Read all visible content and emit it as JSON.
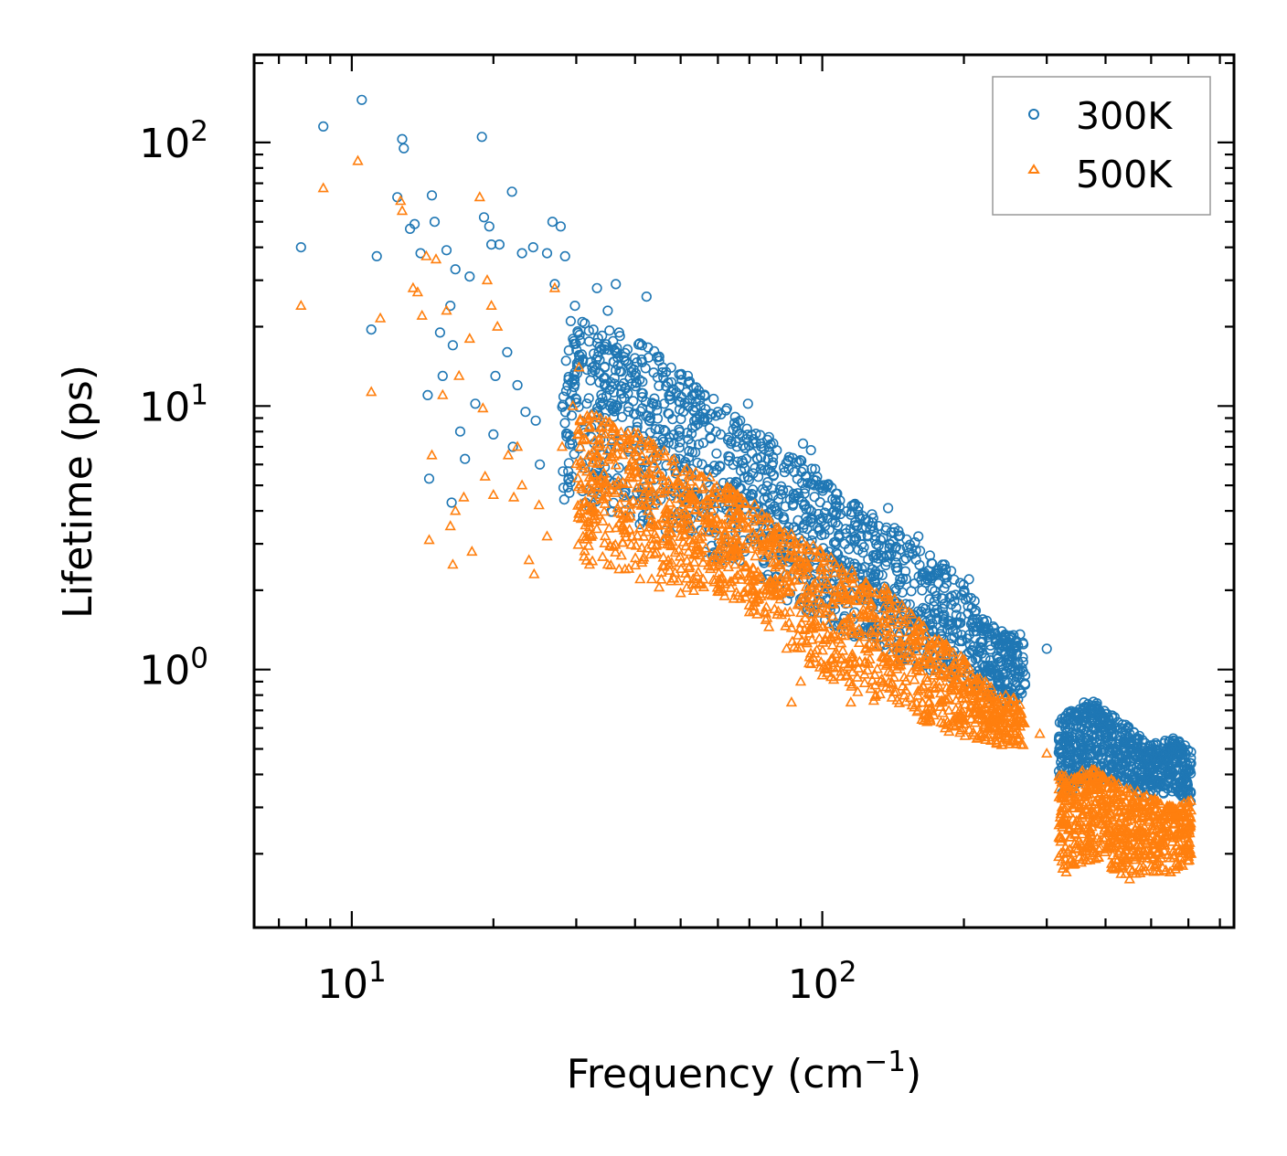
{
  "chart_data": {
    "type": "scatter",
    "xscale": "log",
    "yscale": "log",
    "xlim": [
      6.2,
      750
    ],
    "ylim": [
      0.105,
      215
    ],
    "xlabel": "Frequency (cm",
    "xlabel_sup": "−1",
    "xlabel_close": ")",
    "ylabel": "Lifetime (ps)",
    "xticks": [
      {
        "value": 10,
        "base": "10",
        "exp": "1"
      },
      {
        "value": 100,
        "base": "10",
        "exp": "2"
      }
    ],
    "yticks": [
      {
        "value": 1,
        "base": "10",
        "exp": "0"
      },
      {
        "value": 10,
        "base": "10",
        "exp": "1"
      },
      {
        "value": 100,
        "base": "10",
        "exp": "2"
      }
    ],
    "legend": {
      "position": "top-right"
    },
    "series": [
      {
        "name": "300K",
        "marker": "circle-open",
        "color": "#1f77b4",
        "sample_points": [
          [
            7.8,
            40
          ],
          [
            8.7,
            115
          ],
          [
            10.5,
            145
          ],
          [
            11.0,
            19.5
          ],
          [
            11.3,
            37
          ],
          [
            12.5,
            62
          ],
          [
            12.8,
            103
          ],
          [
            12.9,
            95
          ],
          [
            13.3,
            47
          ],
          [
            13.6,
            49
          ],
          [
            14.0,
            38
          ],
          [
            14.5,
            11
          ],
          [
            14.6,
            5.3
          ],
          [
            14.8,
            63
          ],
          [
            15.0,
            50
          ],
          [
            15.4,
            19
          ],
          [
            15.6,
            13
          ],
          [
            15.9,
            39
          ],
          [
            16.2,
            24
          ],
          [
            16.3,
            4.3
          ],
          [
            16.4,
            17
          ],
          [
            16.6,
            33
          ],
          [
            17.0,
            8.0
          ],
          [
            17.4,
            6.3
          ],
          [
            17.8,
            31
          ],
          [
            18.3,
            10.2
          ],
          [
            18.9,
            105
          ],
          [
            19.1,
            52
          ],
          [
            19.6,
            48
          ],
          [
            19.8,
            41
          ],
          [
            20.0,
            7.8
          ],
          [
            20.2,
            13
          ],
          [
            20.6,
            41
          ],
          [
            21.4,
            16
          ],
          [
            21.9,
            65
          ],
          [
            22.0,
            7.0
          ],
          [
            22.5,
            12
          ],
          [
            23.0,
            38
          ],
          [
            23.4,
            9.5
          ],
          [
            24.3,
            40
          ],
          [
            24.6,
            8.8
          ],
          [
            25.1,
            6.0
          ],
          [
            26.0,
            38
          ],
          [
            26.7,
            50
          ],
          [
            27.0,
            29
          ],
          [
            27.8,
            48
          ],
          [
            28.4,
            37
          ],
          [
            29.2,
            21
          ],
          [
            29.8,
            24
          ],
          [
            31.4,
            4.3
          ],
          [
            33.2,
            28
          ],
          [
            33.5,
            16
          ],
          [
            35.0,
            23
          ],
          [
            36.4,
            29
          ],
          [
            37.0,
            19
          ],
          [
            40.0,
            13
          ],
          [
            41.4,
            17
          ],
          [
            42.3,
            26
          ],
          [
            45.8,
            14
          ],
          [
            55.0,
            11
          ],
          [
            60.0,
            9.5
          ],
          [
            66.0,
            8.0
          ],
          [
            69.5,
            10.2
          ],
          [
            77.0,
            7.0
          ],
          [
            85.0,
            6.4
          ],
          [
            91.0,
            7.2
          ],
          [
            94.6,
            6.8
          ],
          [
            100,
            5.0
          ],
          [
            120,
            3.8
          ],
          [
            138,
            4.1
          ],
          [
            160,
            3.2
          ],
          [
            182,
            2.5
          ],
          [
            205,
            2.2
          ],
          [
            220,
            1.45
          ],
          [
            255,
            1.35
          ],
          [
            270,
            0.95
          ],
          [
            300,
            1.2
          ],
          [
            330,
            0.55
          ],
          [
            360,
            0.75
          ],
          [
            400,
            0.55
          ],
          [
            450,
            0.57
          ],
          [
            500,
            0.48
          ],
          [
            560,
            0.52
          ],
          [
            608,
            0.44
          ]
        ],
        "band": [
          {
            "x": 28,
            "lo": 4.2,
            "hi": 22
          },
          {
            "x": 35,
            "lo": 4.0,
            "hi": 20
          },
          {
            "x": 45,
            "lo": 3.2,
            "hi": 16
          },
          {
            "x": 55,
            "lo": 2.8,
            "hi": 12
          },
          {
            "x": 65,
            "lo": 2.4,
            "hi": 9.5
          },
          {
            "x": 75,
            "lo": 2.1,
            "hi": 8.0
          },
          {
            "x": 85,
            "lo": 1.8,
            "hi": 6.5
          },
          {
            "x": 95,
            "lo": 1.6,
            "hi": 6.0
          },
          {
            "x": 110,
            "lo": 1.4,
            "hi": 4.6
          },
          {
            "x": 130,
            "lo": 1.2,
            "hi": 3.8
          },
          {
            "x": 150,
            "lo": 1.05,
            "hi": 3.3
          },
          {
            "x": 170,
            "lo": 0.95,
            "hi": 2.7
          },
          {
            "x": 195,
            "lo": 0.88,
            "hi": 2.3
          },
          {
            "x": 220,
            "lo": 0.78,
            "hi": 1.6
          },
          {
            "x": 250,
            "lo": 0.75,
            "hi": 1.35
          },
          {
            "x": 270,
            "lo": 0.78,
            "hi": 1.4
          }
        ],
        "band2": [
          {
            "x": 318,
            "lo": 0.32,
            "hi": 0.68
          },
          {
            "x": 380,
            "lo": 0.38,
            "hi": 0.76
          },
          {
            "x": 440,
            "lo": 0.36,
            "hi": 0.62
          },
          {
            "x": 500,
            "lo": 0.32,
            "hi": 0.52
          },
          {
            "x": 560,
            "lo": 0.34,
            "hi": 0.55
          },
          {
            "x": 608,
            "lo": 0.3,
            "hi": 0.5
          }
        ]
      },
      {
        "name": "500K",
        "marker": "triangle-open",
        "color": "#ff7f0e",
        "sample_points": [
          [
            7.8,
            24
          ],
          [
            8.7,
            67
          ],
          [
            10.3,
            85
          ],
          [
            11.0,
            11.3
          ],
          [
            11.5,
            21.5
          ],
          [
            12.7,
            60
          ],
          [
            12.8,
            55
          ],
          [
            13.5,
            28
          ],
          [
            13.8,
            27
          ],
          [
            14.1,
            22
          ],
          [
            14.4,
            37
          ],
          [
            14.6,
            3.1
          ],
          [
            14.8,
            6.5
          ],
          [
            15.1,
            36
          ],
          [
            15.6,
            11
          ],
          [
            15.9,
            23
          ],
          [
            16.2,
            3.5
          ],
          [
            16.4,
            2.5
          ],
          [
            16.6,
            4.0
          ],
          [
            16.9,
            13
          ],
          [
            17.3,
            4.5
          ],
          [
            17.8,
            18
          ],
          [
            18.0,
            2.8
          ],
          [
            18.7,
            62
          ],
          [
            19.0,
            9.8
          ],
          [
            19.2,
            5.4
          ],
          [
            19.4,
            30
          ],
          [
            19.8,
            24
          ],
          [
            20.0,
            4.6
          ],
          [
            20.4,
            20
          ],
          [
            21.5,
            6.5
          ],
          [
            22.1,
            4.5
          ],
          [
            22.5,
            7.0
          ],
          [
            23.0,
            5.0
          ],
          [
            23.8,
            2.6
          ],
          [
            24.4,
            2.3
          ],
          [
            25.0,
            4.2
          ],
          [
            26.0,
            3.2
          ],
          [
            27.0,
            28
          ],
          [
            28.0,
            7.0
          ],
          [
            29.5,
            10
          ],
          [
            30.4,
            14
          ],
          [
            32.0,
            2.5
          ],
          [
            35.0,
            2.5
          ],
          [
            37.0,
            2.4
          ],
          [
            41.0,
            2.2
          ],
          [
            45.0,
            2.05
          ],
          [
            50.0,
            1.95
          ],
          [
            55.0,
            2.1
          ],
          [
            62.0,
            1.9
          ],
          [
            70.0,
            1.65
          ],
          [
            77.0,
            1.45
          ],
          [
            84.0,
            1.2
          ],
          [
            86.0,
            0.75
          ],
          [
            90.0,
            0.9
          ],
          [
            100,
            0.95
          ],
          [
            115,
            0.75
          ],
          [
            130,
            0.8
          ],
          [
            160,
            0.7
          ],
          [
            200,
            0.62
          ],
          [
            240,
            0.57
          ],
          [
            265,
            0.68
          ],
          [
            290,
            0.57
          ],
          [
            300,
            0.48
          ],
          [
            330,
            0.17
          ],
          [
            400,
            0.23
          ],
          [
            450,
            0.16
          ],
          [
            500,
            0.2
          ],
          [
            550,
            0.17
          ],
          [
            608,
            0.2
          ]
        ],
        "band": [
          {
            "x": 30,
            "lo": 2.6,
            "hi": 9.5
          },
          {
            "x": 35,
            "lo": 2.5,
            "hi": 9.0
          },
          {
            "x": 40,
            "lo": 2.3,
            "hi": 8.0
          },
          {
            "x": 45,
            "lo": 2.1,
            "hi": 7.2
          },
          {
            "x": 50,
            "lo": 2.0,
            "hi": 6.0
          },
          {
            "x": 60,
            "lo": 1.9,
            "hi": 5.2
          },
          {
            "x": 70,
            "lo": 1.7,
            "hi": 4.4
          },
          {
            "x": 80,
            "lo": 1.4,
            "hi": 3.6
          },
          {
            "x": 90,
            "lo": 1.1,
            "hi": 3.2
          },
          {
            "x": 100,
            "lo": 0.95,
            "hi": 2.8
          },
          {
            "x": 120,
            "lo": 0.8,
            "hi": 2.3
          },
          {
            "x": 140,
            "lo": 0.7,
            "hi": 2.0
          },
          {
            "x": 170,
            "lo": 0.6,
            "hi": 1.4
          },
          {
            "x": 200,
            "lo": 0.55,
            "hi": 1.1
          },
          {
            "x": 230,
            "lo": 0.52,
            "hi": 0.85
          },
          {
            "x": 270,
            "lo": 0.5,
            "hi": 0.75
          }
        ],
        "band2": [
          {
            "x": 318,
            "lo": 0.17,
            "hi": 0.4
          },
          {
            "x": 380,
            "lo": 0.19,
            "hi": 0.42
          },
          {
            "x": 440,
            "lo": 0.16,
            "hi": 0.36
          },
          {
            "x": 500,
            "lo": 0.17,
            "hi": 0.33
          },
          {
            "x": 560,
            "lo": 0.17,
            "hi": 0.3
          },
          {
            "x": 608,
            "lo": 0.18,
            "hi": 0.32
          }
        ]
      }
    ]
  }
}
